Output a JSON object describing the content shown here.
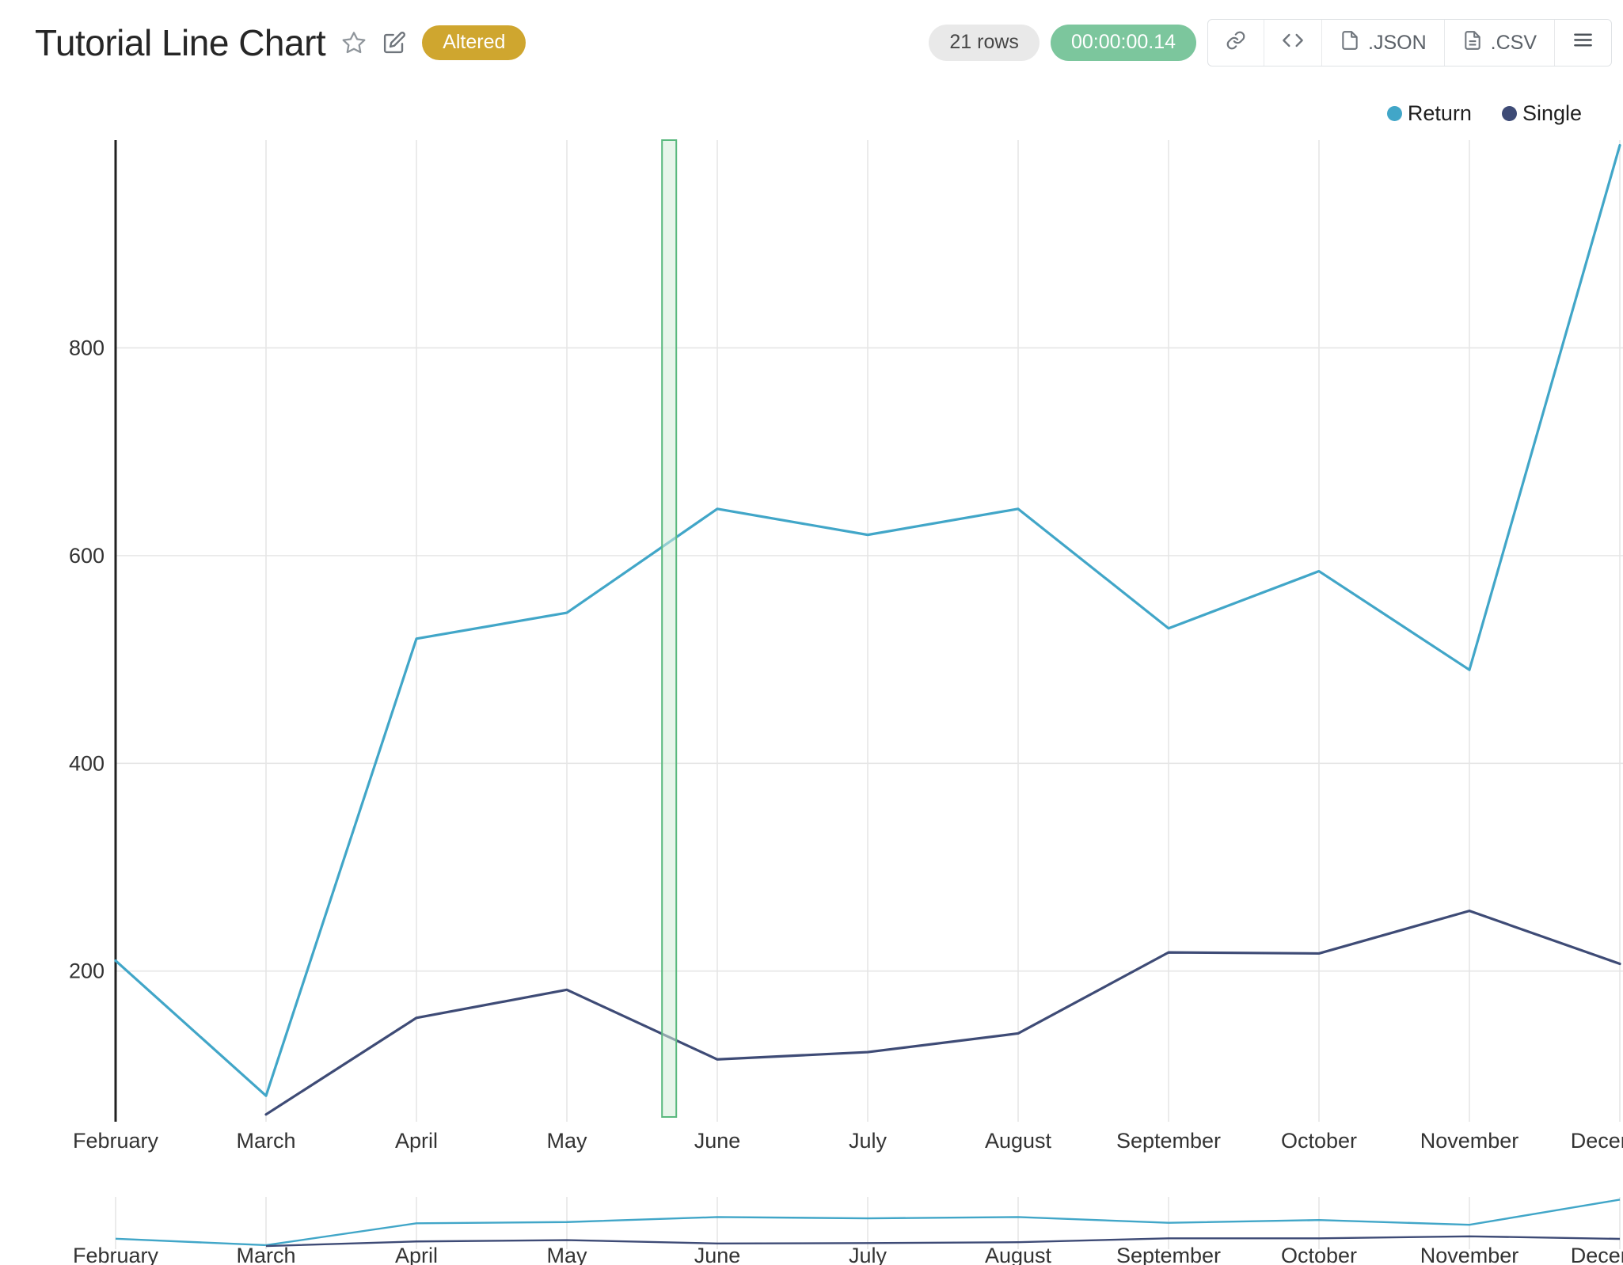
{
  "header": {
    "title": "Tutorial Line Chart",
    "altered_badge": "Altered",
    "rows_label": "21 rows",
    "execution_time": "00:00:00.14",
    "embed_label": "</>",
    "json_label": ".JSON",
    "csv_label": ".CSV"
  },
  "colors": {
    "return_line": "#41a6c8",
    "single_line": "#3e4b76",
    "altered_badge_bg": "#cfa62f",
    "timer_bg": "#7cc69d",
    "grid": "#e6e6e6",
    "axis": "#222222",
    "selection_fill": "#d3ecd8",
    "selection_stroke": "#5ab97e"
  },
  "legend": {
    "items": [
      {
        "label": "Return",
        "color": "#41a6c8"
      },
      {
        "label": "Single",
        "color": "#3e4b76"
      }
    ]
  },
  "chart_data": {
    "type": "line",
    "title": "Tutorial Line Chart",
    "categories": [
      "February",
      "March",
      "April",
      "May",
      "June",
      "July",
      "August",
      "September",
      "October",
      "November",
      "December"
    ],
    "series": [
      {
        "name": "Return",
        "color": "#41a6c8",
        "values": [
          210,
          80,
          520,
          545,
          645,
          620,
          645,
          530,
          585,
          490,
          995
        ]
      },
      {
        "name": "Single",
        "color": "#3e4b76",
        "values": [
          null,
          62,
          155,
          182,
          115,
          122,
          140,
          218,
          217,
          258,
          207
        ]
      }
    ],
    "yticks": [
      200,
      400,
      600,
      800
    ],
    "y_axis_range": [
      55,
      1000
    ],
    "grid": true,
    "legend_position": "top-right",
    "selection_band_fraction": 0.368,
    "navigator": true
  }
}
